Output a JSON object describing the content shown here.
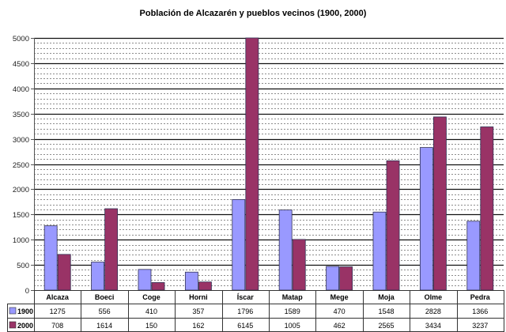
{
  "chart_data": {
    "type": "bar",
    "title": "Población de Alcazarén y pueblos vecinos (1900, 2000)",
    "xlabel": "",
    "ylabel": "",
    "categories": [
      "Alcaza",
      "Boeci",
      "Coge",
      "Horni",
      "Íscar",
      "Matap",
      "Mege",
      "Moja",
      "Olme",
      "Pedra"
    ],
    "series": [
      {
        "name": "1900",
        "color": "#9999ff",
        "values": [
          1275,
          556,
          410,
          357,
          1796,
          1589,
          470,
          1548,
          2828,
          1366
        ]
      },
      {
        "name": "2000",
        "color": "#993366",
        "values": [
          708,
          1614,
          150,
          162,
          6145,
          1005,
          462,
          2565,
          3434,
          3237
        ]
      }
    ],
    "ylim": [
      0,
      5000
    ],
    "yticks": [
      0,
      500,
      1000,
      1500,
      2000,
      2500,
      3000,
      3500,
      4000,
      4500,
      5000
    ],
    "grid": {
      "major_step": 500,
      "minor_step": 100
    },
    "legend_position": "data-table",
    "data_table": true
  }
}
